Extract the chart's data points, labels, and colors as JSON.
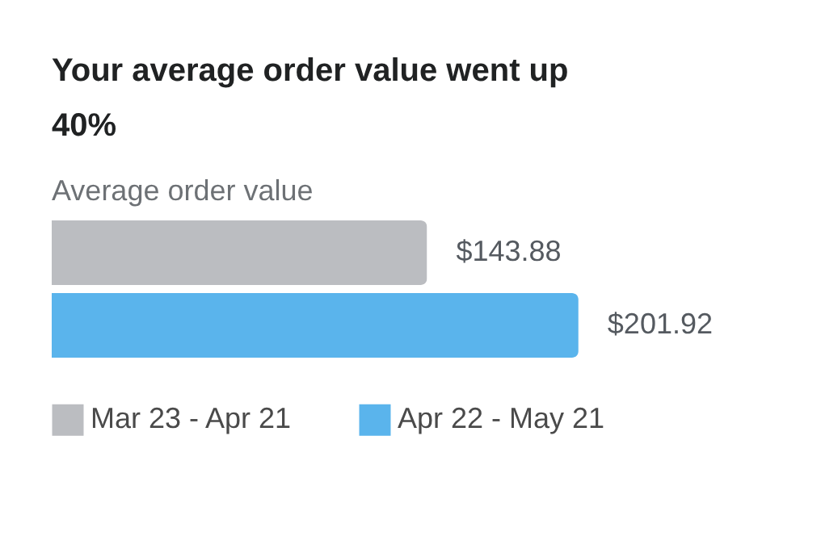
{
  "chart_data": {
    "type": "bar",
    "orientation": "horizontal",
    "stacked": true,
    "title": "Your average order value went up 40%",
    "subtitle": "Average order value",
    "categories": [
      null,
      null
    ],
    "series": [
      {
        "name": "Mar 23 - Apr 21",
        "color": "#bbbdc1",
        "values": [
          143.88,
          null
        ],
        "value_labels": [
          "$143.88",
          null
        ]
      },
      {
        "name": "Apr 22 - May 21",
        "color": "#5ab4ec",
        "values": [
          null,
          201.92
        ],
        "value_labels": [
          null,
          "$201.92"
        ]
      }
    ],
    "legend": "bottom"
  }
}
